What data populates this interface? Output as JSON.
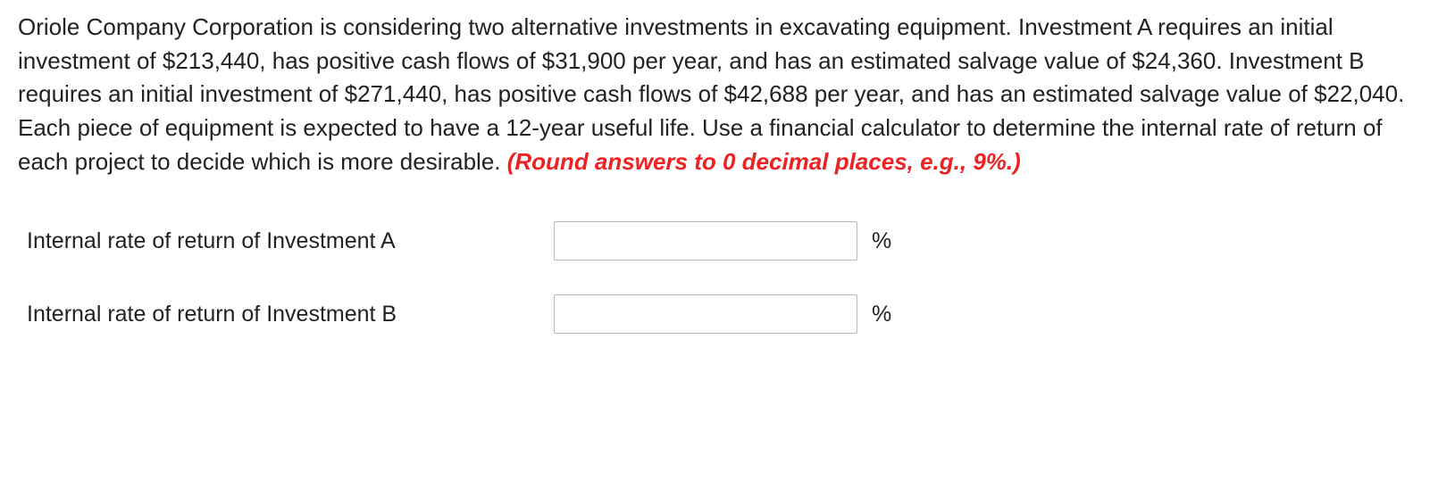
{
  "question": {
    "main_text": "Oriole Company Corporation is considering two alternative investments in excavating equipment. Investment A requires an initial investment of $213,440, has positive cash flows of $31,900 per year, and has an estimated salvage value of $24,360. Investment B requires an initial investment of $271,440, has positive cash flows of $42,688 per year, and has an estimated salvage value of $22,040. Each piece of equipment is expected to have a 12-year useful life. Use a financial calculator to determine the internal rate of return of each project to decide which is more desirable. ",
    "instruction_text": "(Round answers to 0 decimal places, e.g., 9%.)"
  },
  "answers": {
    "row_a": {
      "label": "Internal rate of return of Investment A",
      "value": "",
      "unit": "%"
    },
    "row_b": {
      "label": "Internal rate of return of Investment B",
      "value": "",
      "unit": "%"
    }
  },
  "colors": {
    "text": "#222222",
    "highlight": "#ee2222",
    "input_border": "#b8b8b8",
    "background": "#ffffff"
  },
  "typography": {
    "body_fontsize": 26,
    "label_fontsize": 25,
    "instruction_fontweight": 600,
    "instruction_fontstyle": "italic"
  }
}
